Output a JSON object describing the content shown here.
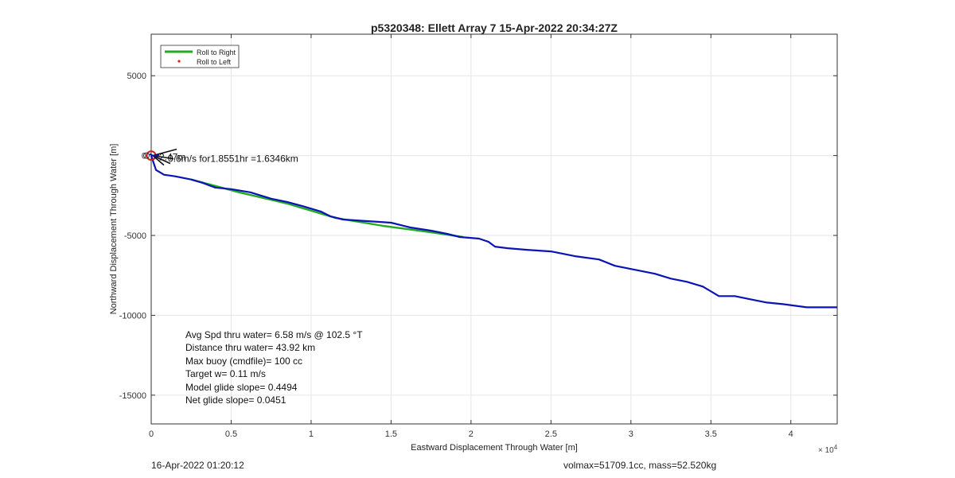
{
  "chart_data": {
    "type": "line",
    "title": "p5320348: Ellett Array 7 15-Apr-2022 20:34:27Z",
    "xlabel": "Eastward Displacement Through Water [m]",
    "ylabel": "Northward Displacement Through Water [m]",
    "x_exponent_label": "× 10",
    "x_exponent_power": "4",
    "xlim": [
      0,
      42900
    ],
    "ylim": [
      -16800,
      7600
    ],
    "x_ticks": [
      0,
      5000,
      10000,
      15000,
      20000,
      25000,
      30000,
      35000,
      40000
    ],
    "x_tick_labels": [
      "0",
      "0.5",
      "1",
      "1.5",
      "2",
      "2.5",
      "3",
      "3.5",
      "4"
    ],
    "y_ticks": [
      5000,
      0,
      -5000,
      -10000,
      -15000
    ],
    "y_tick_labels": [
      "5000",
      "0",
      "-5000",
      "-10000",
      "-15000"
    ],
    "grid": true,
    "legend_position": "top-left",
    "legend": [
      {
        "label": "Roll to Right",
        "color": "#22aa22",
        "marker": "line"
      },
      {
        "label": "Roll to Left",
        "color": "#dd2222",
        "marker": "dot"
      }
    ],
    "series": [
      {
        "color": "#0a14b4",
        "points": [
          [
            0,
            0
          ],
          [
            300,
            -900
          ],
          [
            800,
            -1200
          ],
          [
            1500,
            -1300
          ],
          [
            2500,
            -1500
          ],
          [
            3200,
            -1700
          ],
          [
            4000,
            -2000
          ],
          [
            5000,
            -2100
          ],
          [
            6200,
            -2300
          ],
          [
            7500,
            -2700
          ],
          [
            8500,
            -2900
          ],
          [
            9600,
            -3200
          ],
          [
            10600,
            -3500
          ],
          [
            11200,
            -3800
          ],
          [
            12000,
            -4000
          ],
          [
            13500,
            -4100
          ],
          [
            15000,
            -4200
          ],
          [
            16200,
            -4500
          ],
          [
            17500,
            -4700
          ],
          [
            18500,
            -4900
          ],
          [
            19300,
            -5100
          ],
          [
            20500,
            -5200
          ],
          [
            21100,
            -5400
          ],
          [
            21500,
            -5700
          ],
          [
            22300,
            -5800
          ],
          [
            23500,
            -5900
          ],
          [
            25000,
            -6000
          ],
          [
            26500,
            -6300
          ],
          [
            28000,
            -6500
          ],
          [
            29000,
            -6900
          ],
          [
            30500,
            -7200
          ],
          [
            31500,
            -7400
          ],
          [
            32500,
            -7700
          ],
          [
            33500,
            -7900
          ],
          [
            34500,
            -8200
          ],
          [
            35500,
            -8800
          ],
          [
            36500,
            -8800
          ],
          [
            37500,
            -9000
          ],
          [
            38500,
            -9200
          ],
          [
            39500,
            -9300
          ],
          [
            41000,
            -9500
          ],
          [
            42900,
            -9500
          ]
        ]
      },
      {
        "color": "#22aa22",
        "points": [
          [
            2500,
            -1500
          ],
          [
            5500,
            -2300
          ],
          [
            8500,
            -3000
          ],
          [
            11500,
            -3900
          ],
          [
            14500,
            -4400
          ],
          [
            17500,
            -4800
          ],
          [
            19500,
            -5100
          ]
        ]
      }
    ],
    "annotations": {
      "drift_label": "0.6m/s for1.8551hr =1.6346km",
      "drift_label_overlap": "2.47m"
    },
    "stats_lines": [
      "Avg Spd thru water=  6.58 m/s @ 102.5 °T",
      "Distance thru water= 43.92 km",
      "Max buoy (cmdfile)= 100 cc",
      "Target w= 0.11 m/s",
      "Model glide slope= 0.4494",
      "Net glide slope= 0.0451"
    ]
  },
  "footer": {
    "left": "16-Apr-2022 01:20:12",
    "right": "volmax=51709.1cc, mass=52.520kg"
  }
}
